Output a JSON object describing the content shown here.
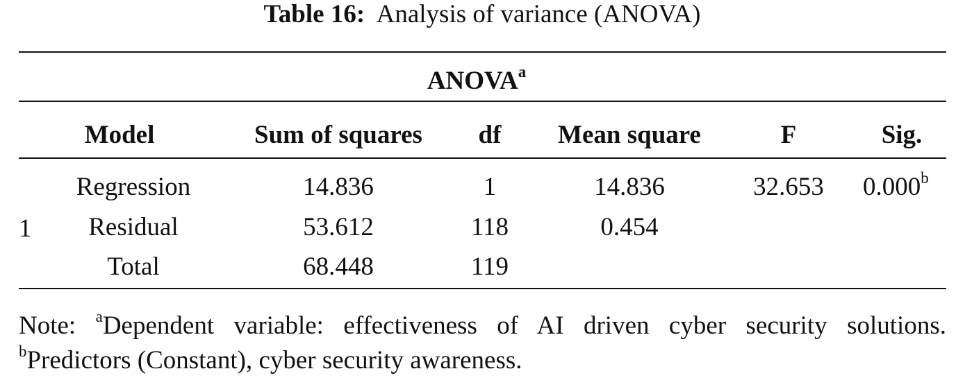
{
  "caption": {
    "label": "Table 16:",
    "text": "Analysis of variance (ANOVA)"
  },
  "table": {
    "title": "ANOVA",
    "title_sup": "a",
    "header": [
      "Model",
      "Sum of squares",
      "df",
      "Mean square",
      "F",
      "Sig."
    ],
    "model": "1",
    "rows": [
      [
        "Regression",
        "14.836",
        "1",
        "14.836",
        "32.653",
        "0.000"
      ],
      [
        "Residual",
        "53.612",
        "118",
        "0.454"
      ],
      [
        "Total",
        "68.448",
        "119"
      ]
    ],
    "sig_sup": "b"
  },
  "note": {
    "prefix": "Note: ",
    "sup_a": "a",
    "text_a": "Dependent variable: effectiveness of AI driven cyber security solutions.",
    "sup_b": "b",
    "text_b": "Predictors (Constant), cyber security awareness."
  }
}
